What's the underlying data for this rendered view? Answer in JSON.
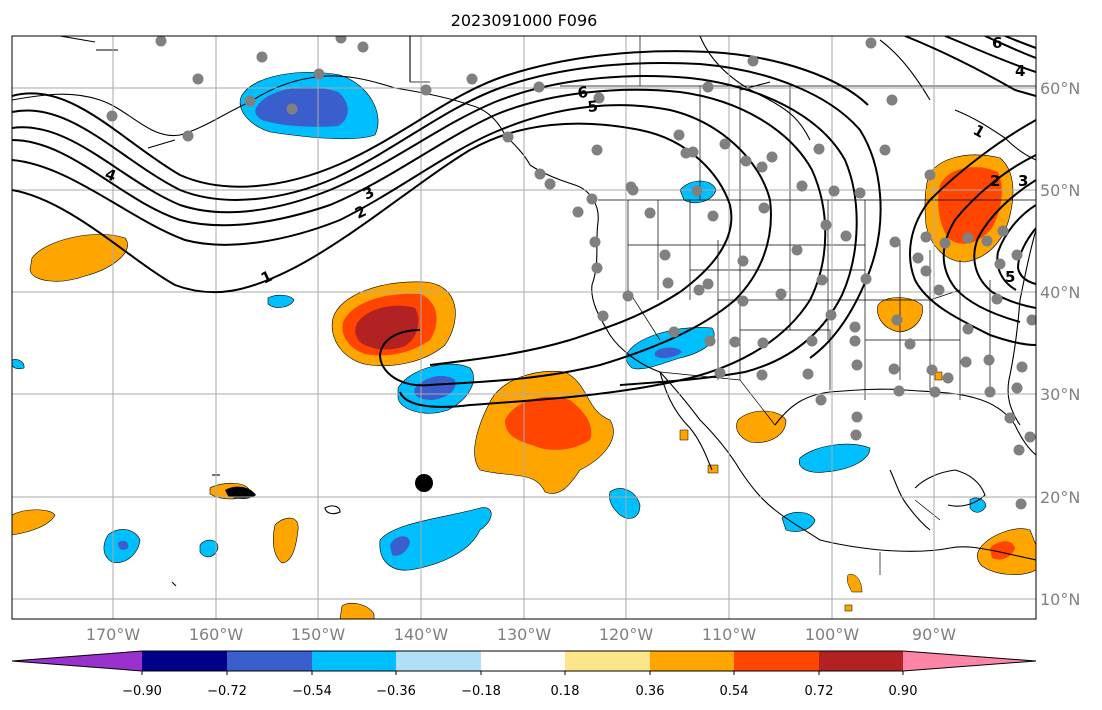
{
  "title": "2023091000 F096",
  "map": {
    "lon_labels": [
      "170°W",
      "160°W",
      "150°W",
      "140°W",
      "130°W",
      "120°W",
      "110°W",
      "100°W",
      "90°W"
    ],
    "lat_labels": [
      "60°N",
      "50°N",
      "40°N",
      "30°N",
      "20°N",
      "10°N"
    ],
    "contour_labels": [
      "1",
      "2",
      "3",
      "4",
      "5",
      "6",
      "1",
      "2",
      "3",
      "4",
      "5",
      "6"
    ],
    "marker": "black-dot",
    "station_dot_color": "#808080"
  },
  "colorbar": {
    "ticks": [
      "−0.90",
      "−0.72",
      "−0.54",
      "−0.36",
      "−0.18",
      "0.18",
      "0.36",
      "0.54",
      "0.72",
      "0.90"
    ],
    "colors": [
      "#9932cc",
      "#00008b",
      "#3a5fcd",
      "#00bfff",
      "#b0e0f8",
      "#ffffff",
      "#fde68a",
      "#ffa500",
      "#ff4500",
      "#b22222",
      "#ff85a8"
    ]
  },
  "colors": {
    "orange": "#ffa500",
    "red_orange": "#ff4500",
    "dark_red": "#b22222",
    "cyan": "#00bfff",
    "blue": "#3a5fcd"
  }
}
